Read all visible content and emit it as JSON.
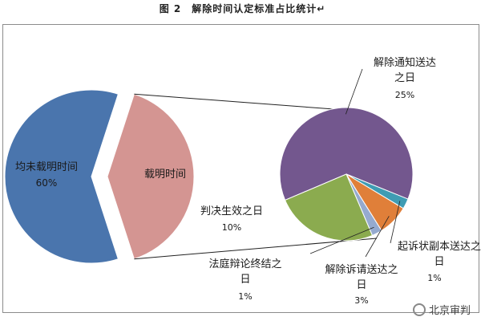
{
  "figure_caption": "图 2　解除时间认定标准占比统计↵",
  "watermark": "北京审判",
  "colors": {
    "blue": "#4a75ad",
    "pink": "#d49592",
    "purple": "#73578e",
    "teal": "#3f9cb3",
    "orange": "#e07f39",
    "lightblue": "#95aacf",
    "green": "#8bab4f",
    "frame": "#8c8c8c"
  },
  "chart_data": {
    "type": "pie",
    "title": "",
    "main": [
      {
        "label": "均未载明时间",
        "percent_label": "60%",
        "value": 60
      },
      {
        "label": "载明时间",
        "percent_label": "",
        "value": 40
      }
    ],
    "breakdown_parent": "载明时间",
    "breakdown": [
      {
        "label": "解除通知送达之日",
        "percent_label": "25%",
        "value": 25
      },
      {
        "label": "起诉状副本送达之日",
        "percent_label": "1%",
        "value": 1
      },
      {
        "label": "解除诉请送达之日",
        "percent_label": "3%",
        "value": 3
      },
      {
        "label": "法庭辩论终结之日",
        "percent_label": "1%",
        "value": 1
      },
      {
        "label": "判决生效之日",
        "percent_label": "10%",
        "value": 10
      }
    ]
  }
}
